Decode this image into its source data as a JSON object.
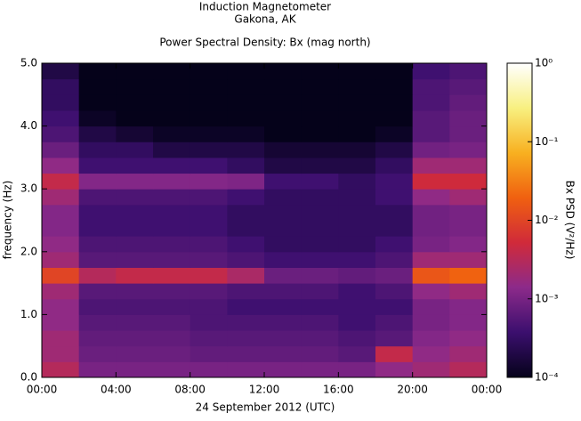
{
  "chart_data": {
    "type": "heatmap",
    "title": "Induction Magnetometer",
    "subtitle": "Gakona, AK",
    "plot_title": "Power Spectral Density: Bx (mag north)",
    "x_label": "24 September 2012 (UTC)",
    "y_label": "frequency (Hz)",
    "colorbar_label": "Bx PSD (V²/Hz)",
    "xbins": [
      0,
      2,
      4,
      6,
      8,
      10,
      12,
      14,
      16,
      18,
      20,
      22,
      24
    ],
    "ybins": [
      0,
      0.25,
      0.5,
      0.75,
      1,
      1.25,
      1.5,
      1.75,
      2,
      2.25,
      2.5,
      2.75,
      3,
      3.25,
      3.5,
      3.75,
      4,
      4.25,
      4.5,
      4.75,
      5
    ],
    "values": [
      [
        0.003,
        0.001,
        0.001,
        0.001,
        0.001,
        0.001,
        0.001,
        0.001,
        0.001,
        0.0015,
        0.002,
        0.003
      ],
      [
        0.002,
        0.0008,
        0.0008,
        0.0008,
        0.0007,
        0.0007,
        0.0007,
        0.0007,
        0.0006,
        0.004,
        0.0015,
        0.002
      ],
      [
        0.002,
        0.0007,
        0.0007,
        0.0007,
        0.0006,
        0.0006,
        0.0006,
        0.0006,
        0.0005,
        0.0006,
        0.0012,
        0.0015
      ],
      [
        0.0015,
        0.0006,
        0.0006,
        0.0006,
        0.0005,
        0.0005,
        0.0005,
        0.0005,
        0.0004,
        0.0005,
        0.001,
        0.0012
      ],
      [
        0.0015,
        0.0005,
        0.0005,
        0.0005,
        0.0005,
        0.0004,
        0.0004,
        0.0004,
        0.0004,
        0.0004,
        0.001,
        0.0012
      ],
      [
        0.002,
        0.0006,
        0.0006,
        0.0006,
        0.0006,
        0.0005,
        0.0005,
        0.0005,
        0.0004,
        0.0005,
        0.0015,
        0.002
      ],
      [
        0.01,
        0.003,
        0.004,
        0.004,
        0.004,
        0.0025,
        0.0008,
        0.0008,
        0.0007,
        0.0008,
        0.015,
        0.02
      ],
      [
        0.002,
        0.0006,
        0.0006,
        0.0006,
        0.0006,
        0.0005,
        0.0004,
        0.0004,
        0.0004,
        0.0005,
        0.002,
        0.002
      ],
      [
        0.0015,
        0.0005,
        0.0005,
        0.0005,
        0.0005,
        0.0004,
        0.0003,
        0.0003,
        0.0003,
        0.0004,
        0.001,
        0.0012
      ],
      [
        0.0012,
        0.0004,
        0.0004,
        0.0004,
        0.0004,
        0.0003,
        0.0003,
        0.0003,
        0.0003,
        0.0003,
        0.0009,
        0.001
      ],
      [
        0.0012,
        0.0004,
        0.0004,
        0.0004,
        0.0004,
        0.0003,
        0.0003,
        0.0003,
        0.0003,
        0.0003,
        0.0009,
        0.001
      ],
      [
        0.002,
        0.0005,
        0.0005,
        0.0005,
        0.0005,
        0.0004,
        0.0003,
        0.0003,
        0.0003,
        0.0004,
        0.0015,
        0.002
      ],
      [
        0.004,
        0.0012,
        0.0012,
        0.0012,
        0.0012,
        0.0011,
        0.0004,
        0.0004,
        0.0003,
        0.0004,
        0.005,
        0.005
      ],
      [
        0.0015,
        0.0004,
        0.0004,
        0.0004,
        0.0004,
        0.0003,
        0.0002,
        0.0002,
        0.0002,
        0.0003,
        0.002,
        0.002
      ],
      [
        0.0008,
        0.0003,
        0.0003,
        0.0002,
        0.0002,
        0.0002,
        0.00015,
        0.00015,
        0.00015,
        0.0002,
        0.0009,
        0.001
      ],
      [
        0.0005,
        0.0002,
        0.00015,
        0.00012,
        0.00012,
        0.00012,
        0.0001,
        0.0001,
        0.0001,
        0.00012,
        0.0006,
        0.0008
      ],
      [
        0.0004,
        0.00012,
        0.0001,
        0.0001,
        0.0001,
        0.0001,
        0.0001,
        0.0001,
        0.0001,
        0.0001,
        0.0006,
        0.0008
      ],
      [
        0.0003,
        0.0001,
        0.0001,
        0.0001,
        0.0001,
        0.0001,
        0.0001,
        0.0001,
        0.0001,
        0.0001,
        0.0005,
        0.0007
      ],
      [
        0.0003,
        0.0001,
        0.0001,
        0.0001,
        0.0001,
        0.0001,
        0.0001,
        0.0001,
        0.0001,
        0.0001,
        0.0005,
        0.0006
      ],
      [
        0.0002,
        0.0001,
        0.0001,
        0.0001,
        0.0001,
        0.0001,
        0.0001,
        0.0001,
        0.0001,
        0.0001,
        0.0004,
        0.0005
      ]
    ],
    "xlim": [
      0,
      24
    ],
    "xticks": [
      {
        "value": 0,
        "label": "00:00"
      },
      {
        "value": 4,
        "label": "04:00"
      },
      {
        "value": 8,
        "label": "08:00"
      },
      {
        "value": 12,
        "label": "12:00"
      },
      {
        "value": 16,
        "label": "16:00"
      },
      {
        "value": 20,
        "label": "20:00"
      },
      {
        "value": 24,
        "label": "00:00"
      }
    ],
    "ylim": [
      0,
      5
    ],
    "yticks": [
      {
        "value": 0,
        "label": "0.0"
      },
      {
        "value": 1,
        "label": "1.0"
      },
      {
        "value": 2,
        "label": "2.0"
      },
      {
        "value": 3,
        "label": "3.0"
      },
      {
        "value": 4,
        "label": "4.0"
      },
      {
        "value": 5,
        "label": "5.0"
      }
    ],
    "zlim": [
      0.0001,
      1
    ],
    "zticks": [
      {
        "value": 0.0001,
        "label": "10⁻⁴"
      },
      {
        "value": 0.001,
        "label": "10⁻³"
      },
      {
        "value": 0.01,
        "label": "10⁻²"
      },
      {
        "value": 0.1,
        "label": "10⁻¹"
      },
      {
        "value": 1,
        "label": "10⁰"
      }
    ],
    "zscale": "log",
    "colormap": [
      "#05021a",
      "#3b0f6e",
      "#8c2a8a",
      "#d02a3a",
      "#f06010",
      "#f8b020",
      "#f8f080",
      "#ffffff"
    ]
  }
}
